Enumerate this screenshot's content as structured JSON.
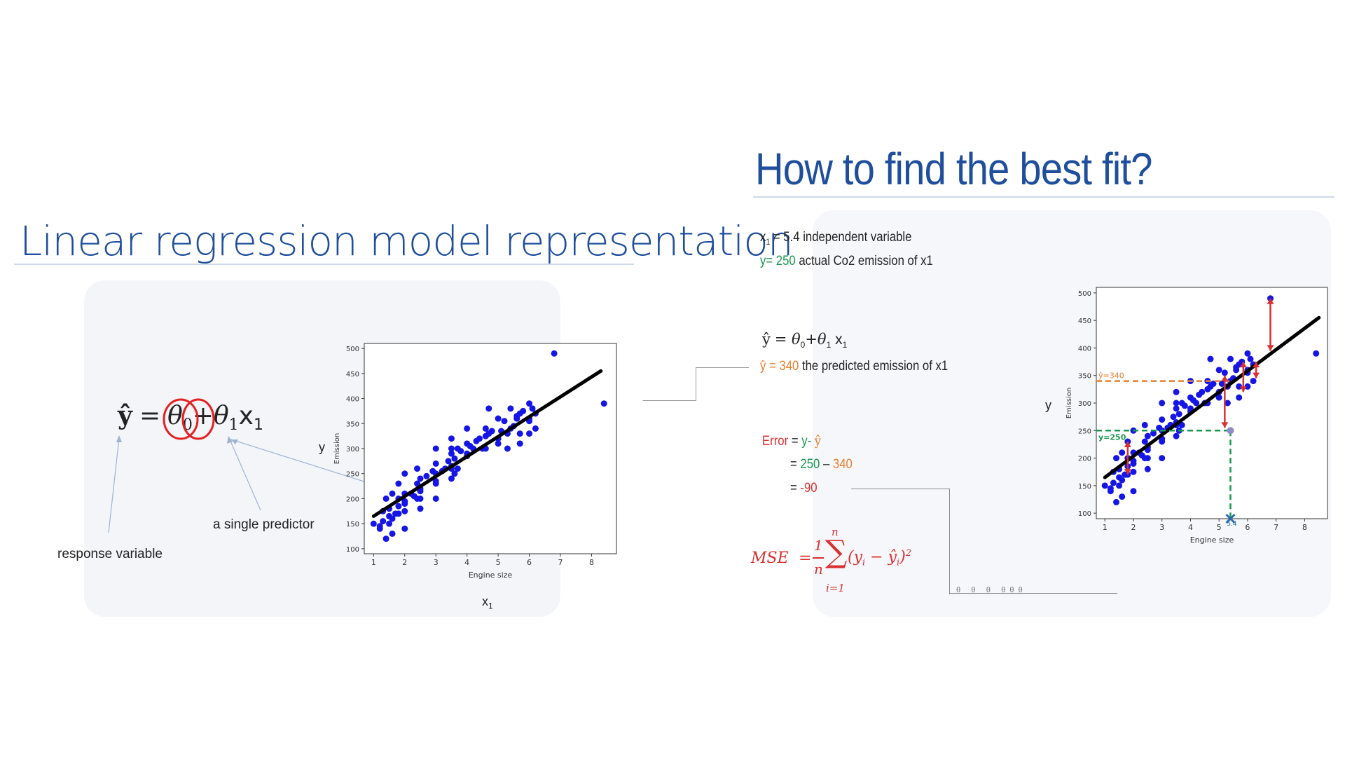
{
  "left": {
    "title": "Linear regression model representation",
    "equation": {
      "yhat": "ŷ",
      "eq": "=",
      "theta0": "θ",
      "theta0_sub": "0",
      "plus": "+",
      "theta1": "θ",
      "theta1_sub": "1",
      "x": "x",
      "x_sub": "1"
    },
    "labels": {
      "response": "response variable",
      "predictor": "a single predictor",
      "axis_y": "y",
      "axis_x": "x",
      "axis_x_sub": "1"
    }
  },
  "right": {
    "title": "How to find the best fit?",
    "line1": {
      "var": "x",
      "sub": "1",
      "text": "= 5.4  independent variable"
    },
    "line2": {
      "lead": "y= 250",
      "text": "actual Co2 emission of x1"
    },
    "model": {
      "yhat": "ŷ",
      "text": "= θ",
      "s0": "0",
      "plus": "+θ",
      "s1": "1",
      "x": " x",
      "xs": "1"
    },
    "pred": {
      "lead": "ŷ = 340",
      "text": "the predicted emission of x1"
    },
    "error": {
      "label": "Error",
      "eq": "= ",
      "y": "y",
      "minus": "- ",
      "yhat": "ŷ",
      "line2_eq": "= ",
      "v250": "250",
      "dash": " – ",
      "v340": "340",
      "line3_eq": "= ",
      "v90": "-90"
    },
    "mse": {
      "lhs": "MSE",
      "eq": "=",
      "num": "1",
      "den": "n",
      "top": "n",
      "bottom": "i=1",
      "sigma": "∑",
      "body": "(y",
      "i": "i",
      "minus": " − ŷ",
      "i2": "i",
      "close": ")",
      "pow": "2"
    },
    "axis_y": "y",
    "trail": "θ     θ     θ     θ  θ  θ"
  },
  "colors": {
    "title": "#1f4f9c",
    "points": "#1515e6",
    "fit": "#000000",
    "green": "#1a9850",
    "orange": "#e68030",
    "red": "#d93030"
  },
  "chart_data": [
    {
      "type": "scatter",
      "xlabel": "Engine size",
      "ylabel": "Emission",
      "xlim": [
        0.7,
        8.8
      ],
      "ylim": [
        90,
        510
      ],
      "xticks": [
        1,
        2,
        3,
        4,
        5,
        6,
        7,
        8
      ],
      "yticks": [
        100,
        150,
        200,
        250,
        300,
        350,
        400,
        450,
        500
      ],
      "fit_line": {
        "x": [
          1.0,
          8.3
        ],
        "y": [
          165,
          455
        ]
      },
      "series": [
        {
          "x": [
            1.0,
            1.2,
            1.3,
            1.4,
            1.4,
            1.5,
            1.5,
            1.6,
            1.6,
            1.6,
            1.8,
            1.8,
            1.8,
            2.0,
            2.0,
            2.0,
            2.0,
            2.0,
            2.4,
            2.4,
            2.4,
            2.5,
            2.5,
            2.5,
            2.5,
            3.0,
            3.0,
            3.0,
            3.0,
            3.0,
            3.3,
            3.5,
            3.5,
            3.5,
            3.5,
            3.5,
            3.6,
            3.6,
            3.7,
            3.7,
            4.0,
            4.0,
            4.0,
            4.2,
            4.4,
            4.6,
            4.6,
            4.7,
            4.7,
            5.0,
            5.0,
            5.3,
            5.3,
            5.4,
            5.4,
            5.6,
            5.7,
            5.7,
            5.7,
            6.0,
            6.0,
            6.0,
            6.2,
            6.2,
            6.8,
            8.4,
            1.5,
            2.0,
            2.5,
            3.0,
            3.5,
            4.0,
            4.5,
            5.0,
            5.5,
            6.0,
            1.3,
            1.8,
            2.2,
            2.7,
            3.2,
            3.8,
            4.3,
            4.8,
            5.2,
            5.8,
            1.2,
            1.7,
            2.3,
            2.9,
            3.4,
            4.1,
            4.6,
            5.1,
            5.6,
            6.1
          ],
          "y": [
            150,
            140,
            175,
            120,
            200,
            180,
            150,
            210,
            160,
            130,
            200,
            230,
            170,
            190,
            210,
            250,
            175,
            140,
            230,
            200,
            260,
            220,
            240,
            200,
            180,
            270,
            230,
            250,
            200,
            300,
            260,
            290,
            260,
            240,
            300,
            320,
            280,
            250,
            300,
            260,
            310,
            290,
            340,
            300,
            320,
            340,
            300,
            330,
            380,
            360,
            310,
            330,
            300,
            380,
            340,
            360,
            370,
            330,
            310,
            360,
            390,
            330,
            370,
            340,
            490,
            390,
            165,
            195,
            215,
            235,
            265,
            285,
            300,
            320,
            345,
            355,
            155,
            185,
            210,
            245,
            255,
            295,
            315,
            335,
            355,
            375,
            145,
            170,
            205,
            255,
            275,
            305,
            325,
            335,
            365,
            380
          ]
        }
      ]
    },
    {
      "type": "scatter",
      "xlabel": "Engine size",
      "ylabel": "Emission",
      "xlim": [
        0.7,
        8.8
      ],
      "ylim": [
        90,
        510
      ],
      "xticks": [
        1,
        2,
        3,
        4,
        5,
        6,
        7,
        8
      ],
      "yticks": [
        100,
        150,
        200,
        250,
        300,
        350,
        400,
        450,
        500
      ],
      "fit_line": {
        "x": [
          1.0,
          8.5
        ],
        "y": [
          165,
          455
        ]
      },
      "highlight": {
        "x": 5.4,
        "x_label": "5.4",
        "y_actual": 250,
        "y_pred": 340,
        "y_actual_label": "y=250",
        "y_pred_label": "ŷ=340"
      },
      "series": [
        {
          "x": [
            1.0,
            1.2,
            1.3,
            1.4,
            1.4,
            1.5,
            1.5,
            1.6,
            1.6,
            1.6,
            1.8,
            1.8,
            1.8,
            2.0,
            2.0,
            2.0,
            2.0,
            2.0,
            2.4,
            2.4,
            2.4,
            2.5,
            2.5,
            2.5,
            2.5,
            3.0,
            3.0,
            3.0,
            3.0,
            3.0,
            3.3,
            3.5,
            3.5,
            3.5,
            3.5,
            3.5,
            3.6,
            3.6,
            3.7,
            3.7,
            4.0,
            4.0,
            4.0,
            4.2,
            4.4,
            4.6,
            4.6,
            4.7,
            4.7,
            5.0,
            5.0,
            5.3,
            5.3,
            5.4,
            5.4,
            5.6,
            5.7,
            5.7,
            5.7,
            6.0,
            6.0,
            6.0,
            6.2,
            6.2,
            6.8,
            8.4,
            1.5,
            2.0,
            2.5,
            3.0,
            3.5,
            4.0,
            4.5,
            5.0,
            5.5,
            6.0,
            1.3,
            1.8,
            2.2,
            2.7,
            3.2,
            3.8,
            4.3,
            4.8,
            5.2,
            5.8,
            1.2,
            1.7,
            2.3,
            2.9,
            3.4,
            4.1,
            4.6,
            5.1,
            5.6,
            6.1
          ],
          "y": [
            150,
            140,
            175,
            120,
            200,
            180,
            150,
            210,
            160,
            130,
            200,
            230,
            170,
            190,
            210,
            250,
            175,
            140,
            230,
            200,
            260,
            220,
            240,
            200,
            180,
            270,
            230,
            250,
            200,
            300,
            260,
            290,
            260,
            240,
            300,
            320,
            280,
            250,
            300,
            260,
            310,
            290,
            340,
            300,
            320,
            340,
            300,
            330,
            380,
            360,
            310,
            330,
            300,
            380,
            340,
            360,
            370,
            330,
            310,
            360,
            390,
            330,
            370,
            340,
            490,
            390,
            165,
            195,
            215,
            235,
            265,
            285,
            300,
            320,
            345,
            355,
            155,
            185,
            210,
            245,
            255,
            295,
            315,
            335,
            355,
            375,
            145,
            170,
            205,
            255,
            275,
            305,
            325,
            335,
            365,
            380
          ]
        }
      ]
    }
  ]
}
